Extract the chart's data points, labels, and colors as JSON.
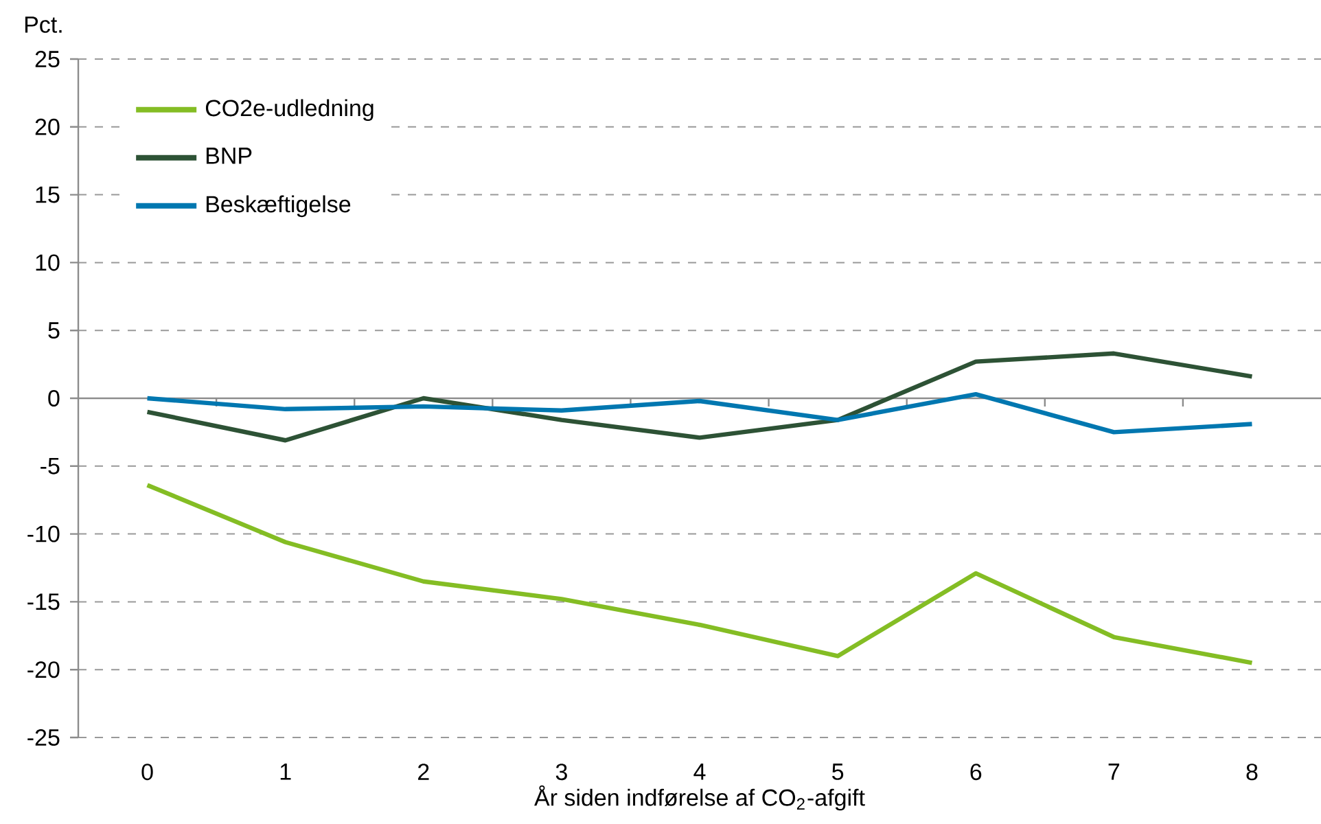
{
  "chart_data": {
    "type": "line",
    "xlabel": "År siden indførelse af CO$_{2}$-afgift",
    "ylabel": "Pct.",
    "categories": [
      "0",
      "1",
      "2",
      "3",
      "4",
      "5",
      "6",
      "7",
      "8"
    ],
    "series": [
      {
        "name": "CO2e-udledning",
        "color": "#84bd24",
        "values": [
          -6.4,
          -10.6,
          -13.5,
          -14.8,
          -16.7,
          -19.0,
          -12.9,
          -17.6,
          -19.5
        ]
      },
      {
        "name": "BNP",
        "color": "#2d5235",
        "values": [
          -1.0,
          -3.1,
          0.0,
          -1.6,
          -2.9,
          -1.6,
          2.7,
          3.3,
          1.6
        ]
      },
      {
        "name": "Beskæftigelse",
        "color": "#0077b0",
        "values": [
          0.0,
          -0.8,
          -0.6,
          -0.9,
          -0.2,
          -1.6,
          0.3,
          -2.5,
          -1.9
        ]
      }
    ],
    "ylim": [
      -25,
      25
    ],
    "yticks": [
      -25,
      -20,
      -15,
      -10,
      -5,
      0,
      5,
      10,
      15,
      20,
      25
    ],
    "grid": "y",
    "legend": "top left",
    "marker": "none",
    "line_style": "solid"
  }
}
